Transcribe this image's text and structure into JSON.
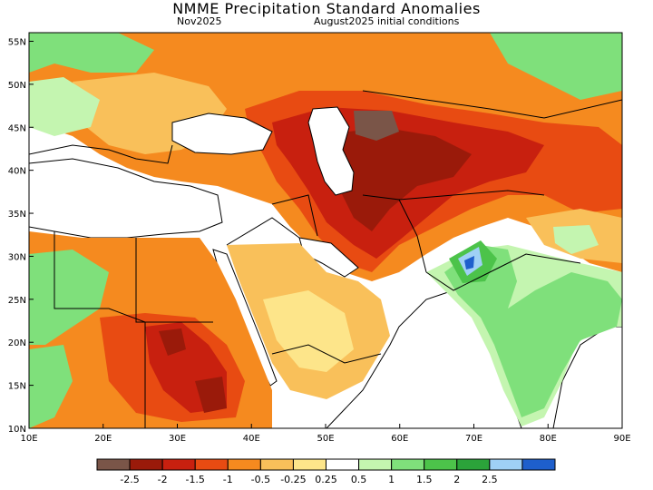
{
  "header": {
    "title": "NMME Precipitation Standard Anomalies",
    "subtitle_left": "Nov2025",
    "subtitle_right": "August2025 initial conditions"
  },
  "map": {
    "lon_labels": [
      "10E",
      "20E",
      "30E",
      "40E",
      "50E",
      "60E",
      "70E",
      "80E",
      "90E"
    ],
    "lat_labels": [
      "55N",
      "50N",
      "45N",
      "40N",
      "35N",
      "30N",
      "25N",
      "20N",
      "15N",
      "10N"
    ],
    "lon_range": [
      10,
      90
    ],
    "lat_range": [
      10,
      56
    ]
  },
  "colorbar": {
    "labels": [
      "-2.5",
      "-2",
      "-1.5",
      "-1",
      "-0.5",
      "-0.25",
      "0.25",
      "0.5",
      "1",
      "1.5",
      "2",
      "2.5"
    ],
    "colors": [
      "#7a5548",
      "#9a1a0a",
      "#c8200f",
      "#e84b12",
      "#f58a1f",
      "#f9c05a",
      "#fde58a",
      "#ffffff",
      "#c4f5b0",
      "#7fe07b",
      "#4cc34a",
      "#2ba33a",
      "#9fd0f5",
      "#1e5fcc"
    ]
  },
  "palette": {
    "brown": "#7a5548",
    "darkred": "#9a1a0a",
    "red": "#c8200f",
    "redorange": "#e84b12",
    "orange": "#f58a1f",
    "lightorange": "#f9c05a",
    "yellow": "#fde58a",
    "lightgreen": "#c4f5b0",
    "green": "#7fe07b",
    "midgreen": "#4cc34a",
    "darkgreen": "#2ba33a",
    "lightblue": "#9fd0f5",
    "blue": "#1e5fcc"
  }
}
